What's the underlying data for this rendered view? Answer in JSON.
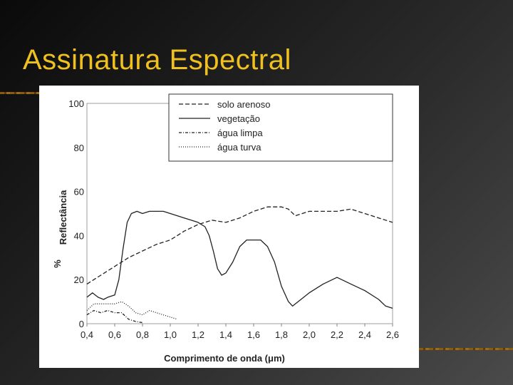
{
  "slide": {
    "title": "Assinatura Espectral"
  },
  "colors": {
    "title": "#f0c020",
    "ink": "#222222"
  },
  "chart_data": {
    "type": "line",
    "xlabel": "Comprimento de onda (μm)",
    "ylabel_main": "Reflectância",
    "ylabel_unit": "%",
    "xlim": [
      0.4,
      2.6
    ],
    "ylim": [
      0,
      100
    ],
    "x_ticks": [
      {
        "value": 0.4,
        "label": "0,4"
      },
      {
        "value": 0.6,
        "label": "0,6"
      },
      {
        "value": 0.8,
        "label": "0,8"
      },
      {
        "value": 1.0,
        "label": "1,0"
      },
      {
        "value": 1.2,
        "label": "1,2"
      },
      {
        "value": 1.4,
        "label": "1,4"
      },
      {
        "value": 1.6,
        "label": "1,6"
      },
      {
        "value": 1.8,
        "label": "1,8"
      },
      {
        "value": 2.0,
        "label": "2,0"
      },
      {
        "value": 2.2,
        "label": "2,2"
      },
      {
        "value": 2.4,
        "label": "2,4"
      },
      {
        "value": 2.6,
        "label": "2,6"
      }
    ],
    "y_ticks": [
      {
        "value": 0,
        "label": "0"
      },
      {
        "value": 20,
        "label": "20"
      },
      {
        "value": 40,
        "label": "40"
      },
      {
        "value": 60,
        "label": "60"
      },
      {
        "value": 80,
        "label": "80"
      },
      {
        "value": 100,
        "label": "100"
      }
    ],
    "legend_position": "top-right",
    "series": [
      {
        "name": "solo arenoso",
        "dash": "6,3",
        "points": [
          [
            0.4,
            18
          ],
          [
            0.5,
            22
          ],
          [
            0.6,
            26
          ],
          [
            0.7,
            30
          ],
          [
            0.8,
            33
          ],
          [
            0.9,
            36
          ],
          [
            1.0,
            38
          ],
          [
            1.1,
            42
          ],
          [
            1.2,
            45
          ],
          [
            1.3,
            47
          ],
          [
            1.4,
            46
          ],
          [
            1.5,
            48
          ],
          [
            1.6,
            51
          ],
          [
            1.7,
            53
          ],
          [
            1.8,
            53
          ],
          [
            1.85,
            52
          ],
          [
            1.9,
            49
          ],
          [
            2.0,
            51
          ],
          [
            2.1,
            51
          ],
          [
            2.2,
            51
          ],
          [
            2.3,
            52
          ],
          [
            2.4,
            50
          ],
          [
            2.5,
            48
          ],
          [
            2.6,
            46
          ]
        ]
      },
      {
        "name": "vegetação",
        "dash": "",
        "points": [
          [
            0.4,
            12
          ],
          [
            0.44,
            14
          ],
          [
            0.48,
            12
          ],
          [
            0.52,
            11
          ],
          [
            0.55,
            12
          ],
          [
            0.6,
            13
          ],
          [
            0.63,
            20
          ],
          [
            0.66,
            34
          ],
          [
            0.69,
            46
          ],
          [
            0.72,
            50
          ],
          [
            0.76,
            51
          ],
          [
            0.8,
            50
          ],
          [
            0.85,
            51
          ],
          [
            0.9,
            51
          ],
          [
            0.95,
            51
          ],
          [
            1.0,
            50
          ],
          [
            1.05,
            49
          ],
          [
            1.1,
            48
          ],
          [
            1.15,
            47
          ],
          [
            1.2,
            46
          ],
          [
            1.25,
            44
          ],
          [
            1.28,
            40
          ],
          [
            1.31,
            33
          ],
          [
            1.34,
            25
          ],
          [
            1.37,
            22
          ],
          [
            1.4,
            23
          ],
          [
            1.45,
            28
          ],
          [
            1.5,
            35
          ],
          [
            1.55,
            38
          ],
          [
            1.6,
            38
          ],
          [
            1.65,
            38
          ],
          [
            1.7,
            35
          ],
          [
            1.75,
            28
          ],
          [
            1.8,
            17
          ],
          [
            1.85,
            10
          ],
          [
            1.88,
            8
          ],
          [
            1.92,
            10
          ],
          [
            2.0,
            14
          ],
          [
            2.1,
            18
          ],
          [
            2.2,
            21
          ],
          [
            2.3,
            18
          ],
          [
            2.4,
            15
          ],
          [
            2.5,
            11
          ],
          [
            2.55,
            8
          ],
          [
            2.6,
            7
          ]
        ]
      },
      {
        "name": "água limpa",
        "dash": "4,2,1,2",
        "points": [
          [
            0.4,
            4
          ],
          [
            0.45,
            6
          ],
          [
            0.5,
            5
          ],
          [
            0.55,
            6
          ],
          [
            0.6,
            5
          ],
          [
            0.65,
            5
          ],
          [
            0.7,
            2
          ],
          [
            0.75,
            1
          ],
          [
            0.8,
            0.5
          ]
        ]
      },
      {
        "name": "água turva",
        "dash": "1,2",
        "points": [
          [
            0.4,
            6
          ],
          [
            0.45,
            9
          ],
          [
            0.5,
            9
          ],
          [
            0.55,
            9
          ],
          [
            0.6,
            9
          ],
          [
            0.65,
            10
          ],
          [
            0.7,
            8
          ],
          [
            0.75,
            5
          ],
          [
            0.8,
            4
          ],
          [
            0.85,
            6
          ],
          [
            0.9,
            5
          ],
          [
            0.95,
            4
          ],
          [
            1.0,
            3
          ],
          [
            1.05,
            2
          ]
        ]
      }
    ]
  }
}
